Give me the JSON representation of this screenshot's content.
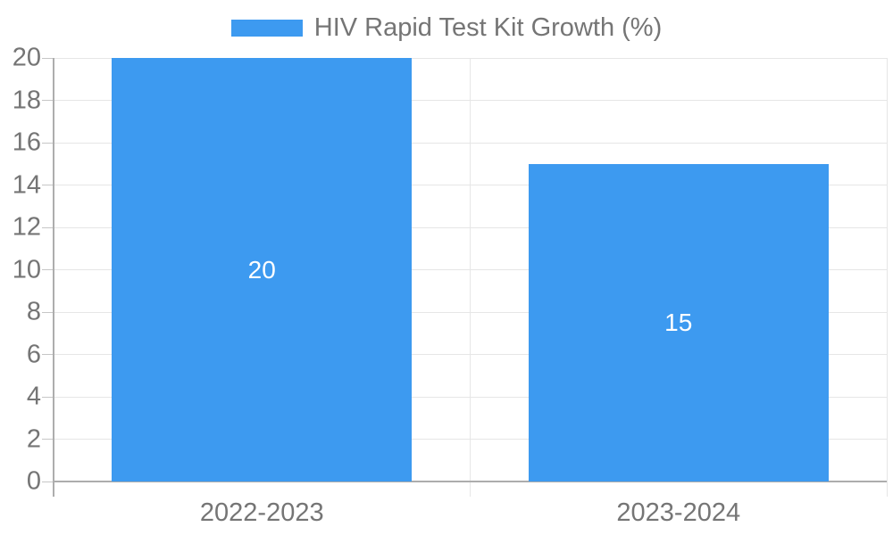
{
  "chart_data": {
    "type": "bar",
    "title": "HIV Rapid Test Kit Growth (%)",
    "categories": [
      "2022-2023",
      "2023-2024"
    ],
    "series": [
      {
        "name": "HIV Rapid Test Kit Growth (%)",
        "values": [
          20,
          15
        ]
      }
    ],
    "bar_labels": [
      "20",
      "15"
    ],
    "xlabel": "",
    "ylabel": "",
    "ylim": [
      0,
      20
    ],
    "yticks": [
      0,
      2,
      4,
      6,
      8,
      10,
      12,
      14,
      16,
      18,
      20
    ],
    "grid": true,
    "legend_position": "top-center",
    "colors": {
      "bar": "#3D9AF0",
      "text": "#757575",
      "axis": "#ADADAD",
      "tick": "#C6C6C6",
      "gridline": "#E6E6E6",
      "bar_label": "#FFFFFF",
      "background": "#FFFFFF"
    }
  }
}
